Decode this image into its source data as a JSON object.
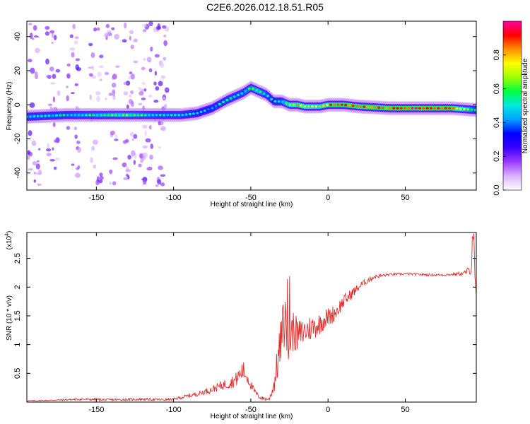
{
  "title": "C2E6.2026.012.18.51.R05",
  "chart_data": [
    {
      "type": "heatmap",
      "xlabel": "Height of straight line (km)",
      "ylabel": "Frequency (Hz)",
      "xlim": [
        -195,
        96
      ],
      "ylim": [
        -50,
        49
      ],
      "x_ticks": [
        -150,
        -100,
        -50,
        0,
        50
      ],
      "y_ticks": [
        -40,
        -20,
        0,
        20,
        40
      ],
      "colorbar": {
        "label": "Normalized spectral amplitude",
        "range": [
          0.0,
          1.0
        ],
        "ticks": [
          "0.0",
          "0.2",
          "0.4",
          "0.6",
          "0.8"
        ],
        "colors": [
          "#ffffff",
          "#d9b3ff",
          "#9a3cff",
          "#3a00ff",
          "#0000ff",
          "#00a0ff",
          "#00e8e0",
          "#00ff40",
          "#9cff00",
          "#ffff00",
          "#ff9000",
          "#ff0000",
          "#ff00a0"
        ]
      },
      "ridge": {
        "x": [
          -195,
          -170,
          -150,
          -130,
          -110,
          -95,
          -85,
          -75,
          -65,
          -55,
          -50,
          -45,
          -40,
          -35,
          -30,
          -25,
          -20,
          -15,
          -10,
          -5,
          0,
          10,
          20,
          40,
          60,
          80,
          95
        ],
        "freq": [
          -7,
          -6,
          -6,
          -6,
          -6,
          -6,
          -5,
          -2,
          3,
          7,
          10,
          8,
          6,
          2,
          2,
          0,
          0,
          -1,
          -1,
          -1,
          0,
          0,
          -1,
          -2,
          -2,
          -2,
          -3
        ],
        "amplitude": [
          0.5,
          0.5,
          0.55,
          0.6,
          0.5,
          0.5,
          0.45,
          0.45,
          0.5,
          0.5,
          0.55,
          0.6,
          0.5,
          0.45,
          0.5,
          0.7,
          0.8,
          0.75,
          0.7,
          0.7,
          0.85,
          0.9,
          0.85,
          0.9,
          0.95,
          0.9,
          0.5
        ]
      }
    },
    {
      "type": "line",
      "xlabel": "Height of straight line (km)",
      "ylabel": "SNR (10 * v/v)",
      "y_scale_label": "(x10",
      "y_scale_exp": "4",
      "xlim": [
        -195,
        96
      ],
      "ylim": [
        0,
        2.95
      ],
      "x_ticks": [
        -150,
        -100,
        -50,
        0,
        50
      ],
      "y_ticks": [
        0.5,
        1.0,
        1.5,
        2.0,
        2.5
      ],
      "series": [
        {
          "color": "#e03030",
          "x": [
            -195,
            -180,
            -160,
            -140,
            -120,
            -105,
            -100,
            -95,
            -85,
            -75,
            -70,
            -65,
            -60,
            -55,
            -52,
            -48,
            -45,
            -42,
            -38,
            -35,
            -32,
            -30,
            -28,
            -26,
            -24,
            -22,
            -20,
            -17,
            -14,
            -10,
            -6,
            -2,
            2,
            6,
            10,
            14,
            18,
            22,
            26,
            30,
            35,
            40,
            50,
            60,
            70,
            80,
            88,
            92,
            94,
            96
          ],
          "values": [
            0.02,
            0.03,
            0.05,
            0.04,
            0.05,
            0.04,
            0.05,
            0.08,
            0.14,
            0.22,
            0.28,
            0.32,
            0.38,
            0.55,
            0.42,
            0.2,
            0.1,
            0.06,
            0.05,
            0.3,
            0.8,
            1.15,
            1.45,
            1.1,
            1.2,
            1.25,
            1.15,
            1.2,
            1.25,
            1.3,
            1.35,
            1.45,
            1.5,
            1.6,
            1.75,
            1.85,
            1.95,
            2.05,
            2.12,
            2.18,
            2.2,
            2.22,
            2.23,
            2.22,
            2.21,
            2.22,
            2.24,
            2.3,
            2.5,
            2.1
          ],
          "noise": [
            0.01,
            0.01,
            0.02,
            0.02,
            0.02,
            0.02,
            0.02,
            0.03,
            0.04,
            0.06,
            0.08,
            0.1,
            0.12,
            0.18,
            0.12,
            0.06,
            0.04,
            0.03,
            0.03,
            0.15,
            0.35,
            0.45,
            0.5,
            0.45,
            0.4,
            0.35,
            0.3,
            0.25,
            0.25,
            0.22,
            0.2,
            0.18,
            0.16,
            0.14,
            0.12,
            0.1,
            0.08,
            0.06,
            0.05,
            0.04,
            0.03,
            0.02,
            0.02,
            0.02,
            0.02,
            0.02,
            0.04,
            0.08,
            0.3,
            0.3
          ]
        }
      ]
    }
  ]
}
